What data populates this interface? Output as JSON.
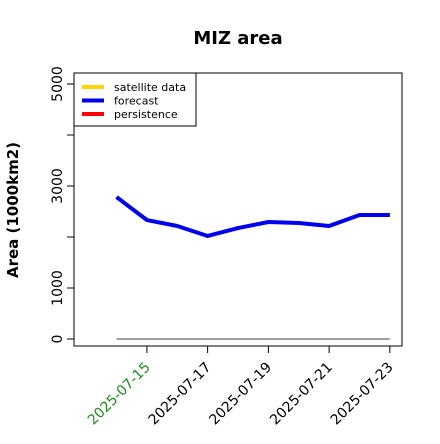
{
  "chart_data": {
    "type": "line",
    "title": "MIZ area",
    "y_label": "Area (1000km2)",
    "x": [
      "2025-07-14",
      "2025-07-15",
      "2025-07-16",
      "2025-07-17",
      "2025-07-18",
      "2025-07-19",
      "2025-07-20",
      "2025-07-21",
      "2025-07-22",
      "2025-07-23"
    ],
    "series": [
      {
        "name": "satellite data",
        "color": "#ffd700",
        "values": [
          null,
          null,
          null,
          null,
          null,
          null,
          null,
          null,
          null,
          null
        ]
      },
      {
        "name": "forecast",
        "color": "#0000ee",
        "values": [
          2784,
          2333,
          2216,
          2020,
          2176,
          2294,
          2275,
          2216,
          2431,
          2431
        ]
      },
      {
        "name": "persistence",
        "color": "#ff0000",
        "values": [
          null,
          null,
          null,
          null,
          null,
          null,
          null,
          null,
          null,
          null
        ]
      }
    ],
    "reference_line": {
      "value": 0,
      "color": "#808080"
    },
    "xlim": [
      "2025-07-13",
      "2025-07-23"
    ],
    "xticks": [
      "2025-07-15",
      "2025-07-17",
      "2025-07-19",
      "2025-07-21",
      "2025-07-23"
    ],
    "xtick_colors": [
      "#228b22",
      "#000000",
      "#000000",
      "#000000",
      "#000000"
    ],
    "ylim": [
      -137,
      5216
    ],
    "yticks": [
      0,
      1000,
      3000,
      5000
    ],
    "yminor_ticks": [
      2000,
      4000
    ],
    "legend": "top-left"
  }
}
